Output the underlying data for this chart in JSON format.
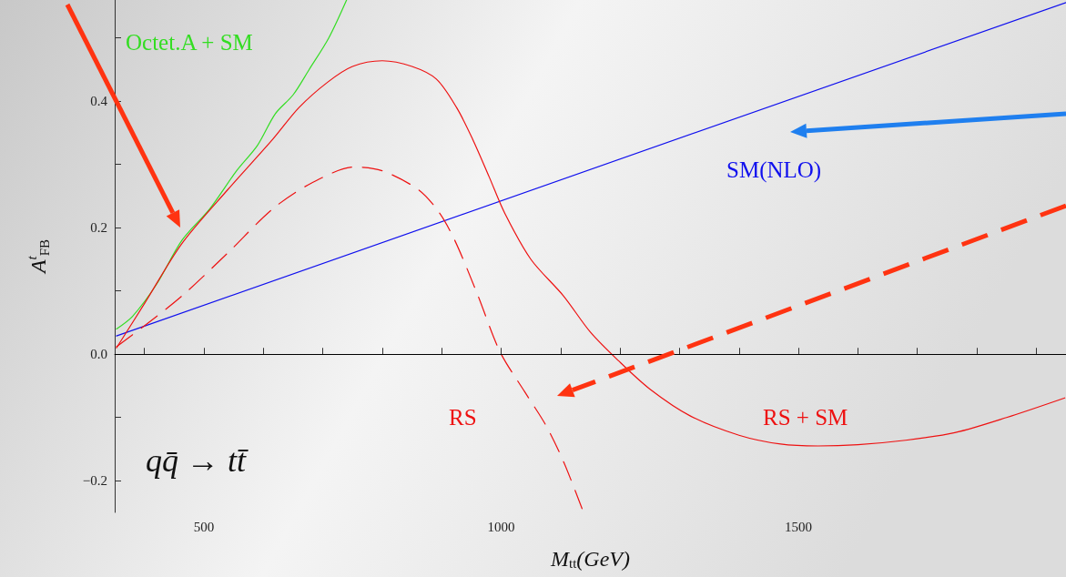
{
  "chart_data": {
    "type": "line",
    "xlabel": "M$_{tt}$(GeV)",
    "ylabel": "A$^{t}$$_{FB}$",
    "xlim": [
      350,
      1950
    ],
    "ylim": [
      -0.25,
      0.56
    ],
    "xticks": [
      {
        "value": 400,
        "label": null
      },
      500,
      {
        "value": 600,
        "label": null
      },
      {
        "value": 700,
        "label": null
      },
      {
        "value": 800,
        "label": null
      },
      {
        "value": 900,
        "label": null
      },
      1000,
      {
        "value": 1100,
        "label": null
      },
      {
        "value": 1200,
        "label": null
      },
      {
        "value": 1300,
        "label": null
      },
      {
        "value": 1400,
        "label": null
      },
      1500,
      {
        "value": 1600,
        "label": null
      },
      {
        "value": 1700,
        "label": null
      },
      {
        "value": 1800,
        "label": null
      },
      {
        "value": 1900,
        "label": null
      }
    ],
    "yticks": [
      {
        "value": -0.2,
        "label": "−0.2"
      },
      {
        "value": -0.1,
        "label": null
      },
      {
        "value": 0,
        "label": "0.0"
      },
      {
        "value": 0.1,
        "label": null
      },
      {
        "value": 0.2,
        "label": "0.2"
      },
      {
        "value": 0.3,
        "label": null
      },
      {
        "value": 0.4,
        "label": "0.4"
      },
      {
        "value": 0.5,
        "label": null
      }
    ],
    "grid": false,
    "legend": false,
    "marker": "none",
    "series": [
      {
        "name": "Octet.A + SM",
        "color": "#33dd22",
        "line_style": "solid",
        "x": [
          353,
          380,
          420,
          463,
          510,
          555,
          590,
          620,
          650,
          677,
          710,
          740
        ],
        "values": [
          0.04,
          0.06,
          0.11,
          0.18,
          0.23,
          0.29,
          0.33,
          0.38,
          0.41,
          0.45,
          0.5,
          0.56
        ]
      },
      {
        "name": "SM(NLO)",
        "color": "#1010ee",
        "line_style": "solid",
        "x": [
          353,
          1950
        ],
        "values": [
          0.029,
          0.556
        ]
      },
      {
        "name": "RS",
        "color": "#ee1111",
        "line_style": "dashed",
        "x": [
          353,
          400,
          463,
          540,
          616,
          680,
          754,
          800,
          861,
          895,
          922,
          960,
          998,
          1040,
          1075,
          1105,
          1136
        ],
        "values": [
          0.012,
          0.045,
          0.092,
          0.16,
          0.23,
          0.27,
          0.296,
          0.29,
          0.26,
          0.225,
          0.18,
          0.095,
          0.004,
          -0.06,
          -0.112,
          -0.17,
          -0.244
        ]
      },
      {
        "name": "RS + SM",
        "color": "#ee1111",
        "line_style": "solid",
        "x": [
          353,
          400,
          463,
          540,
          616,
          660,
          708,
          750,
          800,
          850,
          891,
          925,
          952,
          980,
          1006,
          1050,
          1105,
          1150,
          1197,
          1250,
          1319,
          1400,
          1470,
          1533,
          1600,
          1680,
          1763,
          1850,
          1948
        ],
        "values": [
          0.01,
          0.08,
          0.175,
          0.26,
          0.34,
          0.39,
          0.43,
          0.455,
          0.464,
          0.455,
          0.435,
          0.39,
          0.34,
          0.28,
          0.223,
          0.15,
          0.092,
          0.035,
          -0.01,
          -0.055,
          -0.098,
          -0.128,
          -0.142,
          -0.145,
          -0.143,
          -0.136,
          -0.124,
          -0.1,
          -0.069
        ]
      }
    ],
    "ref_lines": [
      {
        "axis": "y",
        "value": 0,
        "color": "#000000"
      }
    ],
    "annotations": [
      "qq̄ → tt̄"
    ]
  }
}
